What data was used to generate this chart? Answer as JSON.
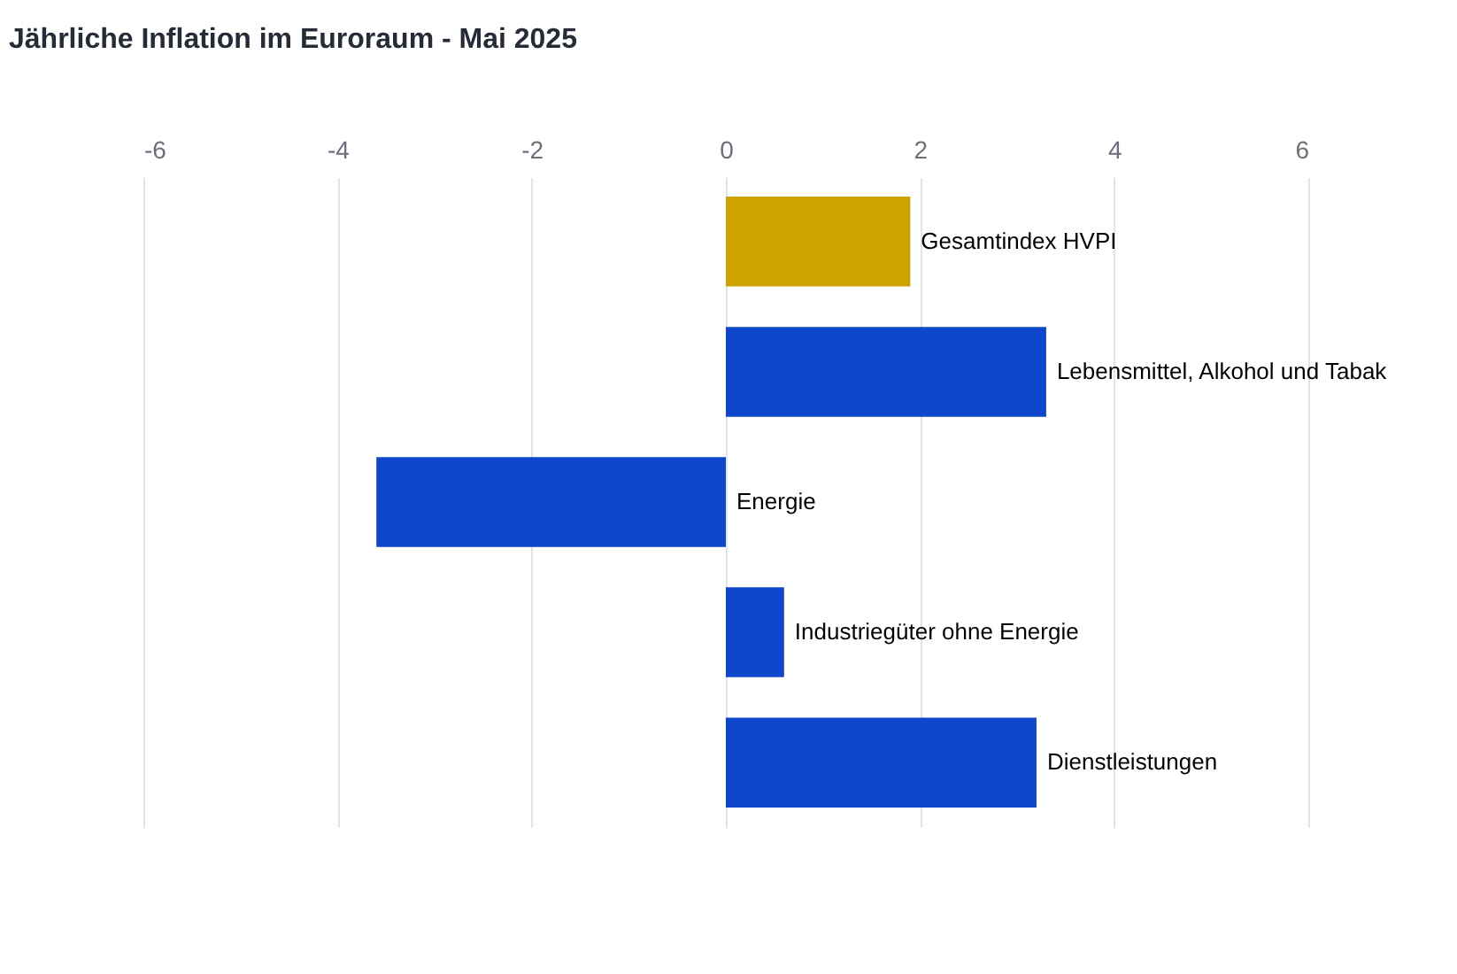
{
  "chart_data": {
    "type": "bar",
    "orientation": "horizontal",
    "title": "Jährliche Inflation im Euroraum - Mai 2025",
    "categories": [
      "Gesamtindex HVPI",
      "Lebensmittel, Alkohol und Tabak",
      "Energie",
      "Industriegüter ohne Energie",
      "Dienstleistungen"
    ],
    "values": [
      1.9,
      3.3,
      -3.6,
      0.6,
      3.2
    ],
    "colors": [
      "#cca300",
      "#0e47cb",
      "#0e47cb",
      "#0e47cb",
      "#0e47cb"
    ],
    "xlim": [
      -6,
      6
    ],
    "xticks": [
      -6,
      -4,
      -2,
      0,
      2,
      4,
      6
    ],
    "grid": "x"
  }
}
